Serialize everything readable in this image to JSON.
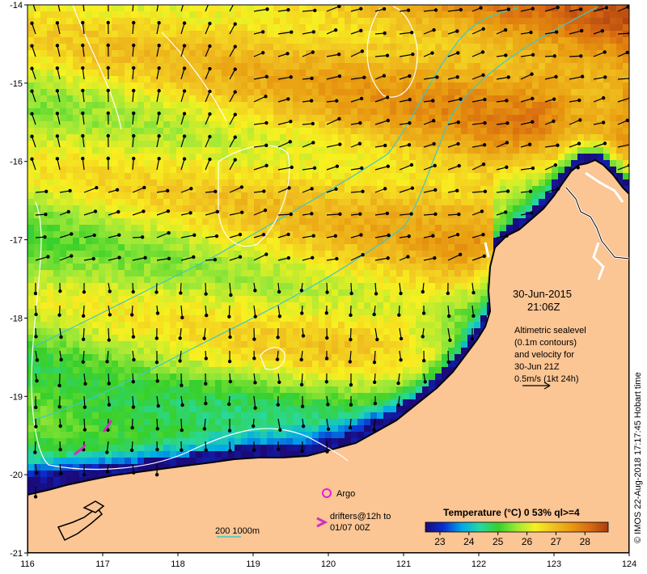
{
  "map": {
    "date": "30-Jun-2015",
    "time": "21:06Z",
    "sealevel_notes": [
      "Altimetric sealevel",
      "(0.1m contours)",
      "and velocity for",
      "30-Jun 21Z",
      "0.5m/s (1kt 24h)"
    ],
    "legend": {
      "argo": "Argo",
      "drifters_line1": "drifters@12h to",
      "drifters_line2": "01/07 00Z",
      "isobaths": "200  1000m"
    },
    "colorbar": {
      "title": "Temperature (°C) 0 53% ql>=4",
      "ticks": [
        "23",
        "24",
        "25",
        "26",
        "27",
        "28"
      ],
      "range": [
        22.5,
        28.8
      ],
      "colors": [
        "#1a0a7a",
        "#0a2ed0",
        "#00a8e8",
        "#28d8a0",
        "#38d02a",
        "#9de838",
        "#f8f020",
        "#f0c020",
        "#e89a10",
        "#d86a10",
        "#a83c10"
      ]
    },
    "credit": "© IMOS 22-Aug-2018 17:17:45 Hobart time",
    "lon_ticks": [
      "116",
      "117",
      "118",
      "119",
      "120",
      "121",
      "122",
      "123",
      "124"
    ],
    "lat_ticks": [
      "-14",
      "-15",
      "-16",
      "-17",
      "-18",
      "-19",
      "-20",
      "-21"
    ],
    "colors": {
      "land": "#fbc594",
      "coast": "#000000",
      "isobath": "#3cc8c8",
      "contour": "#ffffff",
      "argo": "#e020e0",
      "drifter": "#d030c0"
    }
  }
}
